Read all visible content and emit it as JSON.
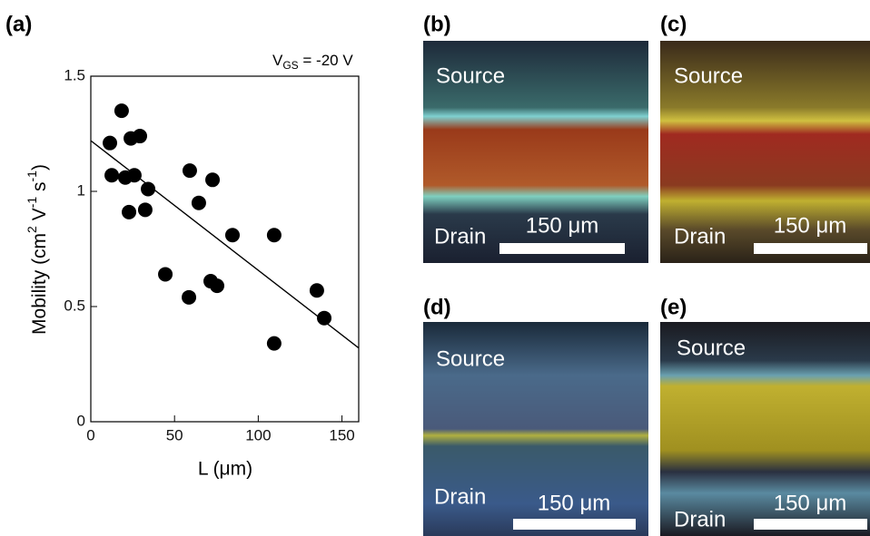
{
  "chart_data": {
    "type": "scatter",
    "panel_label": "(a)",
    "annotation": {
      "base": "V",
      "sub": "GS",
      "rest": " = -20 V"
    },
    "x_label": "L (μm)",
    "y_label": {
      "parts": [
        "Mobility (cm",
        "2",
        " V",
        "-1",
        " s",
        "-1",
        ")"
      ]
    },
    "x": [
      11.4,
      18.4,
      12.5,
      20.6,
      23.9,
      29.3,
      26,
      34.2,
      22.8,
      32.5,
      44.5,
      59.1,
      64.5,
      72.7,
      84.6,
      58.6,
      71.6,
      75.4,
      109.5,
      109.5,
      135,
      139.4
    ],
    "y": [
      1.21,
      1.35,
      1.07,
      1.06,
      1.23,
      1.24,
      1.07,
      1.01,
      0.91,
      0.92,
      0.64,
      1.09,
      0.95,
      1.05,
      0.81,
      0.54,
      0.61,
      0.59,
      0.81,
      0.34,
      0.57,
      0.45
    ],
    "color": "#000000",
    "fit": {
      "x": [
        0,
        160
      ],
      "y": [
        1.22,
        0.32
      ]
    },
    "xlim": [
      0,
      160
    ],
    "xticks": [
      0,
      50,
      100,
      150
    ],
    "ylim": [
      0,
      1.5
    ],
    "yticks": [
      0,
      0.5,
      1,
      1.5
    ]
  },
  "panels": [
    {
      "label": "(b)",
      "source": "Source",
      "drain": "Drain",
      "scale": "150 μm"
    },
    {
      "label": "(c)",
      "source": "Source",
      "drain": "Drain",
      "scale": "150 μm"
    },
    {
      "label": "(d)",
      "source": "Source",
      "drain": "Drain",
      "scale": "150 μm"
    },
    {
      "label": "(e)",
      "source": "Source",
      "drain": "Drain",
      "scale": "150 μm"
    }
  ]
}
